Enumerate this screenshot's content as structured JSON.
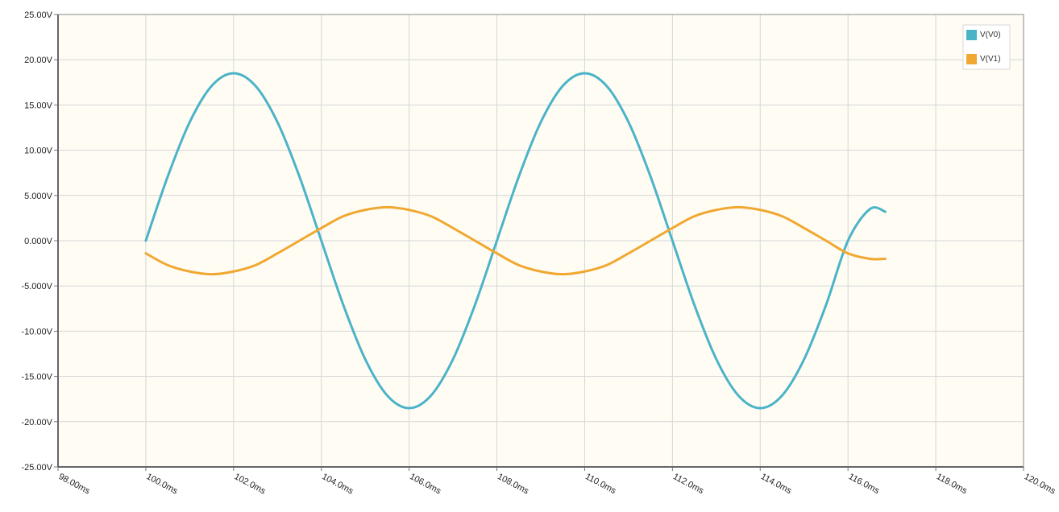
{
  "chart_data": {
    "type": "line",
    "title": "",
    "xlabel": "",
    "ylabel": "",
    "x_unit": "ms",
    "y_unit": "V",
    "xlim": [
      98.0,
      120.0
    ],
    "ylim": [
      -25.0,
      25.0
    ],
    "x_ticks": [
      98.0,
      100.0,
      102.0,
      104.0,
      106.0,
      108.0,
      110.0,
      112.0,
      114.0,
      116.0,
      118.0,
      120.0
    ],
    "x_tick_labels": [
      "98.00ms",
      "100.0ms",
      "102.0ms",
      "104.0ms",
      "106.0ms",
      "108.0ms",
      "110.0ms",
      "112.0ms",
      "114.0ms",
      "116.0ms",
      "118.0ms",
      "120.0ms"
    ],
    "y_ticks": [
      25,
      20,
      15,
      10,
      5,
      0,
      -5,
      -10,
      -15,
      -20,
      -25
    ],
    "y_tick_labels": [
      "25.00V",
      "20.00V",
      "15.00V",
      "10.00V",
      "5.000V",
      "0.000V",
      "-5.000V",
      "-10.00V",
      "-15.00V",
      "-20.00V",
      "-25.00V"
    ],
    "grid": true,
    "legend_position": "top-right",
    "plot_background": "#fffcf4",
    "series": [
      {
        "name": "V(V0)",
        "color": "#4bb3c8",
        "x": [
          100.0,
          100.5,
          101.0,
          101.5,
          102.0,
          102.5,
          103.0,
          103.5,
          104.0,
          104.5,
          105.0,
          105.5,
          106.0,
          106.5,
          107.0,
          107.5,
          108.0,
          108.5,
          109.0,
          109.5,
          110.0,
          110.5,
          111.0,
          111.5,
          112.0,
          112.5,
          113.0,
          113.5,
          114.0,
          114.5,
          115.0,
          115.5,
          116.0,
          116.5,
          116.85
        ],
        "y": [
          0.0,
          7.1,
          13.1,
          17.1,
          18.5,
          17.1,
          13.1,
          7.1,
          0.0,
          -7.1,
          -13.1,
          -17.1,
          -18.5,
          -17.1,
          -13.1,
          -7.1,
          0.0,
          7.1,
          13.1,
          17.1,
          18.5,
          17.1,
          13.1,
          7.1,
          0.0,
          -7.1,
          -13.1,
          -17.1,
          -18.5,
          -17.1,
          -13.1,
          -7.1,
          0.0,
          3.5,
          3.2
        ]
      },
      {
        "name": "V(V1)",
        "color": "#f0a830",
        "x": [
          100.0,
          100.5,
          101.0,
          101.5,
          102.0,
          102.5,
          103.0,
          103.5,
          104.0,
          104.5,
          105.0,
          105.5,
          106.0,
          106.5,
          107.0,
          107.5,
          108.0,
          108.5,
          109.0,
          109.5,
          110.0,
          110.5,
          111.0,
          111.5,
          112.0,
          112.5,
          113.0,
          113.5,
          114.0,
          114.5,
          115.0,
          115.5,
          116.0,
          116.5,
          116.85
        ],
        "y": [
          -1.4,
          -2.7,
          -3.4,
          -3.7,
          -3.4,
          -2.7,
          -1.4,
          0.0,
          1.4,
          2.7,
          3.4,
          3.7,
          3.4,
          2.7,
          1.4,
          0.0,
          -1.4,
          -2.7,
          -3.4,
          -3.7,
          -3.4,
          -2.7,
          -1.4,
          0.0,
          1.4,
          2.7,
          3.4,
          3.7,
          3.4,
          2.7,
          1.4,
          0.0,
          -1.4,
          -2.0,
          -2.0
        ]
      }
    ]
  }
}
